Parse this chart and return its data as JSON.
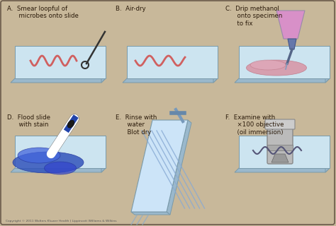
{
  "bg_color": "#c8b89a",
  "border_color": "#6a5a4a",
  "slide_top": "#cce4f0",
  "slide_side": "#9ab8cc",
  "slide_edge": "#7a9aaa",
  "text_color": "#2a1a0a",
  "copyright": "Copyright © 2011 Wolters Kluwer Health | Lippincott Williams & Wilkins",
  "labels": [
    "A.  Smear loopful of\n      microbes onto slide",
    "B.  Air-dry",
    "C.  Drip methanol\n      onto specimen\n      to fix",
    "D.  Flood slide\n      with stain",
    "E.  Rinse with\n      water\n      Blot dry",
    "F.  Examine with\n      ×100 objective\n      (oil immersion)"
  ]
}
